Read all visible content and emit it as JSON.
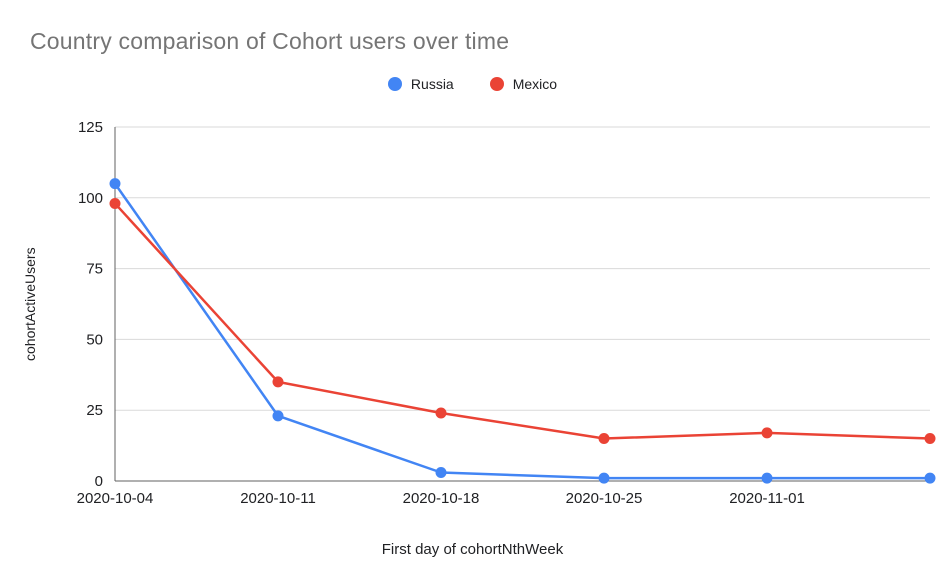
{
  "chart_data": {
    "type": "line",
    "title": "Country comparison of Cohort users over time",
    "xlabel": "First day of cohortNthWeek",
    "ylabel": "cohortActiveUsers",
    "categories": [
      "2020-10-04",
      "2020-10-11",
      "2020-10-18",
      "2020-10-25",
      "2020-11-01",
      ""
    ],
    "yticks": [
      0,
      25,
      50,
      75,
      100,
      125
    ],
    "ylim": [
      0,
      125
    ],
    "grid": true,
    "legend_position": "top",
    "series": [
      {
        "name": "Russia",
        "color": "#4285F4",
        "values": [
          105,
          23,
          3,
          1,
          1,
          1
        ]
      },
      {
        "name": "Mexico",
        "color": "#EA4335",
        "values": [
          98,
          35,
          24,
          15,
          17,
          15
        ]
      }
    ]
  },
  "colors": {
    "title_text": "#757575",
    "axis_line": "#616161",
    "grid_line": "#dadada",
    "tick_text": "#202124",
    "background": "#ffffff"
  }
}
